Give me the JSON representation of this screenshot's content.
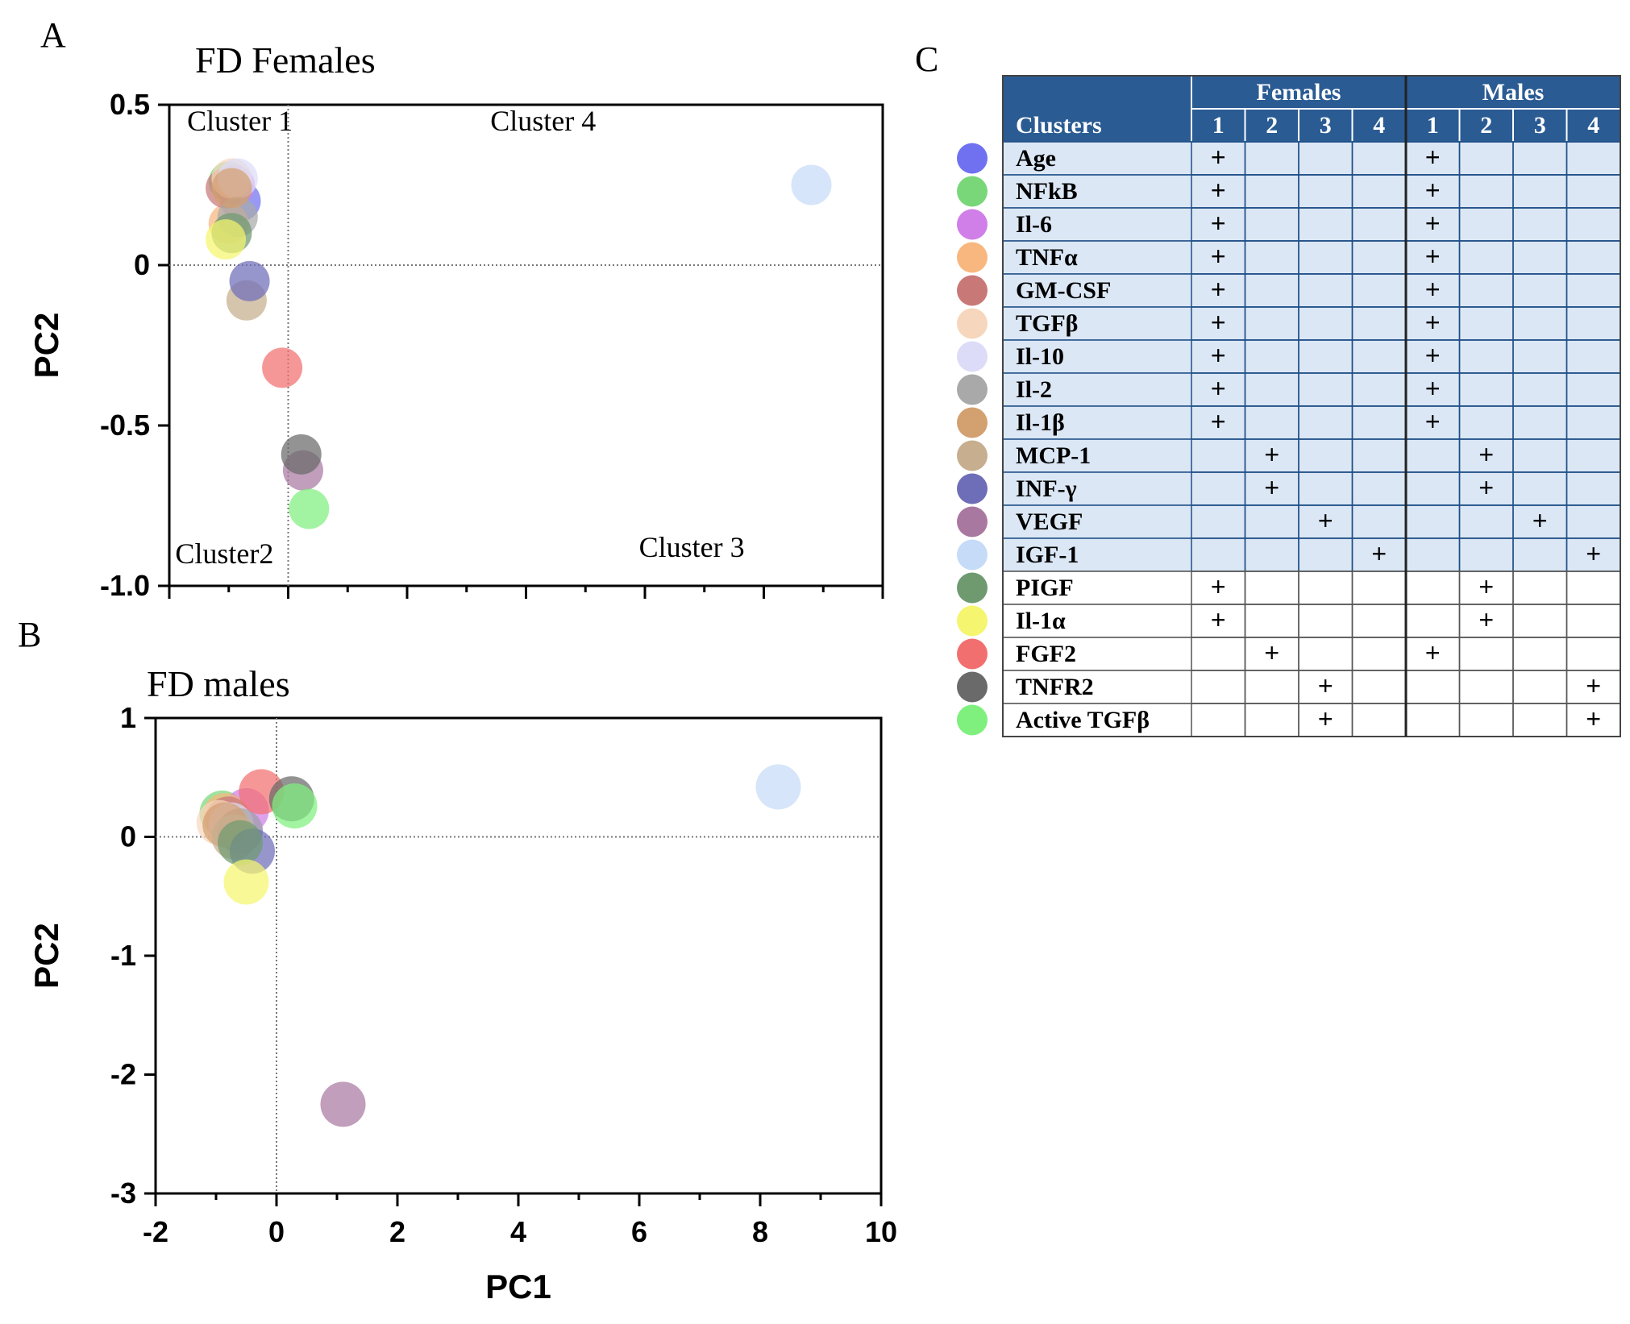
{
  "panels": {
    "A": {
      "letter": "A",
      "title": "FD Females"
    },
    "B": {
      "letter": "B",
      "title": "FD males"
    },
    "C": {
      "letter": "C"
    }
  },
  "chart_data": [
    {
      "id": "A",
      "type": "scatter",
      "title": "FD Females",
      "xlabel": "",
      "ylabel": "PC2",
      "xlim": [
        -2,
        10
      ],
      "ylim": [
        -1.0,
        0.5
      ],
      "xticks": [
        -2,
        0,
        2,
        4,
        6,
        8,
        10
      ],
      "xtick_labels": [],
      "yticks": [
        0.5,
        0,
        -0.5,
        -1.0
      ],
      "ytick_labels": [
        "0.5",
        "0",
        "-0.5",
        "-1.0"
      ],
      "reference_lines": {
        "x": 0,
        "y": 0
      },
      "annotations": [
        {
          "text": "Cluster 1",
          "x": -1.7,
          "y": 0.42
        },
        {
          "text": "Cluster 4",
          "x": 3.4,
          "y": 0.42
        },
        {
          "text": "Cluster2",
          "x": -1.9,
          "y": -0.93
        },
        {
          "text": "Cluster 3",
          "x": 5.9,
          "y": -0.91
        }
      ],
      "points": [
        {
          "label": "Age",
          "x": -0.8,
          "y": 0.2
        },
        {
          "label": "NFkB",
          "x": -1.0,
          "y": 0.26
        },
        {
          "label": "Il-6",
          "x": -0.9,
          "y": 0.25
        },
        {
          "label": "TNFα",
          "x": -1.0,
          "y": 0.13
        },
        {
          "label": "GM-CSF",
          "x": -1.05,
          "y": 0.24
        },
        {
          "label": "TGFβ",
          "x": -0.95,
          "y": 0.27
        },
        {
          "label": "Il-10",
          "x": -0.85,
          "y": 0.27
        },
        {
          "label": "Il-2",
          "x": -0.85,
          "y": 0.15
        },
        {
          "label": "Il-1β",
          "x": -0.95,
          "y": 0.24
        },
        {
          "label": "MCP-1",
          "x": -0.7,
          "y": -0.11
        },
        {
          "label": "INF-γ",
          "x": -0.65,
          "y": -0.05
        },
        {
          "label": "VEGF",
          "x": 0.25,
          "y": -0.64
        },
        {
          "label": "IGF-1",
          "x": 8.8,
          "y": 0.25
        },
        {
          "label": "PIGF",
          "x": -0.95,
          "y": 0.1
        },
        {
          "label": "Il-1α",
          "x": -1.05,
          "y": 0.08
        },
        {
          "label": "FGF2",
          "x": -0.1,
          "y": -0.32
        },
        {
          "label": "TNFR2",
          "x": 0.22,
          "y": -0.59
        },
        {
          "label": "Active TGFβ",
          "x": 0.35,
          "y": -0.76
        }
      ]
    },
    {
      "id": "B",
      "type": "scatter",
      "title": "FD males",
      "xlabel": "PC1",
      "ylabel": "PC2",
      "xlim": [
        -2,
        10
      ],
      "ylim": [
        -3,
        1
      ],
      "xticks": [
        -2,
        0,
        2,
        4,
        6,
        8,
        10
      ],
      "xtick_labels": [
        "-2",
        "0",
        "2",
        "4",
        "6",
        "8",
        "10"
      ],
      "yticks": [
        1,
        0,
        -1,
        -2,
        -3
      ],
      "ytick_labels": [
        "1",
        "0",
        "-1",
        "-2",
        "-3"
      ],
      "reference_lines": {
        "x": 0,
        "y": 0
      },
      "points": [
        {
          "label": "Age",
          "x": -0.6,
          "y": 0.05
        },
        {
          "label": "NFkB",
          "x": -0.9,
          "y": 0.2
        },
        {
          "label": "Il-6",
          "x": -0.5,
          "y": 0.22
        },
        {
          "label": "TNFα",
          "x": -0.85,
          "y": 0.18
        },
        {
          "label": "GM-CSF",
          "x": -0.8,
          "y": 0.15
        },
        {
          "label": "TGFβ",
          "x": -0.95,
          "y": 0.12
        },
        {
          "label": "Il-10",
          "x": -0.75,
          "y": 0.1
        },
        {
          "label": "Il-2",
          "x": -0.6,
          "y": 0.05
        },
        {
          "label": "Il-1β",
          "x": -0.85,
          "y": 0.1
        },
        {
          "label": "MCP-1",
          "x": -0.7,
          "y": 0.0
        },
        {
          "label": "INF-γ",
          "x": -0.4,
          "y": -0.12
        },
        {
          "label": "VEGF",
          "x": 1.1,
          "y": -2.25
        },
        {
          "label": "IGF-1",
          "x": 8.3,
          "y": 0.42
        },
        {
          "label": "PIGF",
          "x": -0.6,
          "y": -0.05
        },
        {
          "label": "Il-1α",
          "x": -0.5,
          "y": -0.38
        },
        {
          "label": "FGF2",
          "x": -0.25,
          "y": 0.38
        },
        {
          "label": "TNFR2",
          "x": 0.25,
          "y": 0.32
        },
        {
          "label": "Active TGFβ",
          "x": 0.3,
          "y": 0.26
        }
      ]
    },
    {
      "id": "C",
      "type": "table",
      "group_headers": [
        "Females",
        "Males"
      ],
      "row_header_label": "Clusters",
      "columns": [
        "1",
        "2",
        "3",
        "4",
        "1",
        "2",
        "3",
        "4"
      ],
      "rows": [
        {
          "name": "Age",
          "cells": [
            "+",
            "",
            "",
            "",
            "+",
            "",
            "",
            ""
          ]
        },
        {
          "name": "NFkB",
          "cells": [
            "+",
            "",
            "",
            "",
            "+",
            "",
            "",
            ""
          ]
        },
        {
          "name": "Il-6",
          "cells": [
            "+",
            "",
            "",
            "",
            "+",
            "",
            "",
            ""
          ]
        },
        {
          "name": "TNFα",
          "cells": [
            "+",
            "",
            "",
            "",
            "+",
            "",
            "",
            ""
          ]
        },
        {
          "name": "GM-CSF",
          "cells": [
            "+",
            "",
            "",
            "",
            "+",
            "",
            "",
            ""
          ]
        },
        {
          "name": "TGFβ",
          "cells": [
            "+",
            "",
            "",
            "",
            "+",
            "",
            "",
            ""
          ]
        },
        {
          "name": "Il-10",
          "cells": [
            "+",
            "",
            "",
            "",
            "+",
            "",
            "",
            ""
          ]
        },
        {
          "name": "Il-2",
          "cells": [
            "+",
            "",
            "",
            "",
            "+",
            "",
            "",
            ""
          ]
        },
        {
          "name": "Il-1β",
          "cells": [
            "+",
            "",
            "",
            "",
            "+",
            "",
            "",
            ""
          ]
        },
        {
          "name": "MCP-1",
          "cells": [
            "",
            "+",
            "",
            "",
            "",
            "+",
            "",
            ""
          ]
        },
        {
          "name": "INF-γ",
          "cells": [
            "",
            "+",
            "",
            "",
            "",
            "+",
            "",
            ""
          ]
        },
        {
          "name": "VEGF",
          "cells": [
            "",
            "",
            "+",
            "",
            "",
            "",
            "+",
            ""
          ]
        },
        {
          "name": "IGF-1",
          "cells": [
            "",
            "",
            "",
            "+",
            "",
            "",
            "",
            "+"
          ]
        },
        {
          "name": "PIGF",
          "cells": [
            "+",
            "",
            "",
            "",
            "",
            "+",
            "",
            ""
          ]
        },
        {
          "name": "Il-1α",
          "cells": [
            "+",
            "",
            "",
            "",
            "",
            "+",
            "",
            ""
          ]
        },
        {
          "name": "FGF2",
          "cells": [
            "",
            "+",
            "",
            "",
            "+",
            "",
            "",
            ""
          ]
        },
        {
          "name": "TNFR2",
          "cells": [
            "",
            "",
            "+",
            "",
            "",
            "",
            "",
            "+"
          ]
        },
        {
          "name": "Active TGFβ",
          "cells": [
            "",
            "",
            "+",
            "",
            "",
            "",
            "",
            "+"
          ]
        }
      ],
      "shaded_rows": 13
    }
  ],
  "colors": {
    "Age": "#6f71f0",
    "NFkB": "#79d77a",
    "Il-6": "#d07ee8",
    "TNFα": "#f8b77e",
    "GM-CSF": "#c97878",
    "TGFβ": "#f6d7bd",
    "Il-10": "#dcdcf8",
    "Il-2": "#a9a9a9",
    "Il-1β": "#d3a070",
    "MCP-1": "#c6ae8e",
    "INF-γ": "#6e6eb8",
    "VEGF": "#a978a1",
    "IGF-1": "#c6dbf7",
    "PIGF": "#6f9a70",
    "Il-1α": "#f5f56f",
    "FGF2": "#f26f6f",
    "TNFR2": "#6a6a6a",
    "Active TGFβ": "#7ff07e",
    "table_header": "#2a5b93",
    "table_shade": "#dbe7f5",
    "table_border": "#1f4f86"
  }
}
